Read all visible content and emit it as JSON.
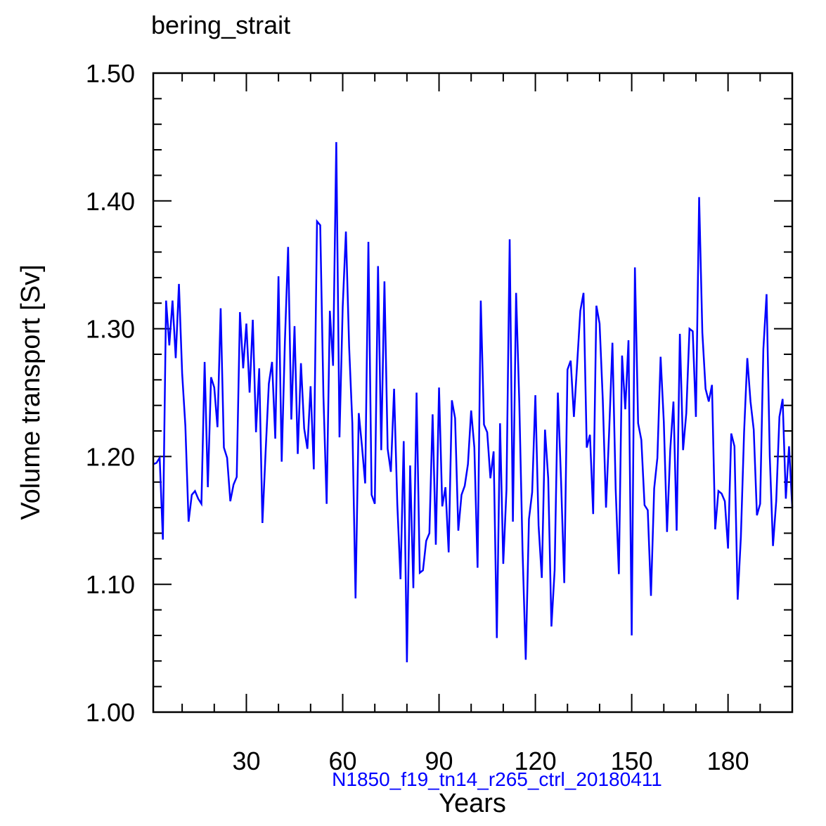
{
  "chart_data": {
    "type": "line",
    "title": "bering_strait",
    "xlabel": "Years",
    "ylabel": "Volume transport [Sv]",
    "subtitle": "N1850_f19_tn14_r265_ctrl_20180411",
    "xlim": [
      1,
      200
    ],
    "ylim": [
      1.0,
      1.5
    ],
    "xticks": [
      30,
      60,
      90,
      120,
      150,
      180
    ],
    "yticks": [
      "1.00",
      "1.10",
      "1.20",
      "1.30",
      "1.40",
      "1.50"
    ],
    "line_color": "#0000ff",
    "subtitle_color": "#0000ff",
    "grid": false,
    "series": [
      {
        "x": [
          1,
          2,
          3,
          4,
          5,
          6,
          7,
          8,
          9,
          10,
          11,
          12,
          13,
          14,
          15,
          16,
          17,
          18,
          19,
          20,
          21,
          22,
          23,
          24,
          25,
          26,
          27,
          28,
          29,
          30,
          31,
          32,
          33,
          34,
          35,
          36,
          37,
          38,
          39,
          40,
          41,
          42,
          43,
          44,
          45,
          46,
          47,
          48,
          49,
          50,
          51,
          52,
          53,
          54,
          55,
          56,
          57,
          58,
          59,
          60,
          61,
          62,
          63,
          64,
          65,
          66,
          67,
          68,
          69,
          70,
          71,
          72,
          73,
          74,
          75,
          76,
          77,
          78,
          79,
          80,
          81,
          82,
          83,
          84,
          85,
          86,
          87,
          88,
          89,
          90,
          91,
          92,
          93,
          94,
          95,
          96,
          97,
          98,
          99,
          100,
          101,
          102,
          103,
          104,
          105,
          106,
          107,
          108,
          109,
          110,
          111,
          112,
          113,
          114,
          115,
          116,
          117,
          118,
          119,
          120,
          121,
          122,
          123,
          124,
          125,
          126,
          127,
          128,
          129,
          130,
          131,
          132,
          133,
          134,
          135,
          136,
          137,
          138,
          139,
          140,
          141,
          142,
          143,
          144,
          145,
          146,
          147,
          148,
          149,
          150,
          151,
          152,
          153,
          154,
          155,
          156,
          157,
          158,
          159,
          160,
          161,
          162,
          163,
          164,
          165,
          166,
          167,
          168,
          169,
          170,
          171,
          172,
          173,
          174,
          175,
          176,
          177,
          178,
          179,
          180,
          181,
          182,
          183,
          184,
          185,
          186,
          187,
          188,
          189,
          190,
          191,
          192,
          193,
          194,
          195,
          196,
          197,
          198,
          199,
          200
        ],
        "values": [
          1.194,
          1.195,
          1.199,
          1.135,
          1.322,
          1.287,
          1.322,
          1.277,
          1.335,
          1.265,
          1.224,
          1.149,
          1.17,
          1.173,
          1.167,
          1.163,
          1.274,
          1.176,
          1.262,
          1.254,
          1.223,
          1.316,
          1.207,
          1.199,
          1.165,
          1.178,
          1.184,
          1.313,
          1.269,
          1.304,
          1.25,
          1.307,
          1.219,
          1.269,
          1.148,
          1.204,
          1.257,
          1.274,
          1.214,
          1.341,
          1.196,
          1.29,
          1.364,
          1.229,
          1.302,
          1.202,
          1.273,
          1.222,
          1.206,
          1.255,
          1.19,
          1.384,
          1.381,
          1.247,
          1.163,
          1.314,
          1.271,
          1.446,
          1.215,
          1.317,
          1.376,
          1.286,
          1.226,
          1.089,
          1.234,
          1.208,
          1.179,
          1.368,
          1.17,
          1.163,
          1.349,
          1.205,
          1.337,
          1.206,
          1.188,
          1.253,
          1.163,
          1.104,
          1.212,
          1.039,
          1.193,
          1.097,
          1.25,
          1.109,
          1.111,
          1.134,
          1.14,
          1.233,
          1.131,
          1.254,
          1.161,
          1.176,
          1.125,
          1.244,
          1.23,
          1.142,
          1.17,
          1.177,
          1.194,
          1.236,
          1.207,
          1.113,
          1.322,
          1.225,
          1.219,
          1.183,
          1.204,
          1.058,
          1.226,
          1.116,
          1.174,
          1.37,
          1.149,
          1.328,
          1.242,
          1.127,
          1.041,
          1.151,
          1.172,
          1.248,
          1.146,
          1.105,
          1.221,
          1.183,
          1.067,
          1.111,
          1.25,
          1.181,
          1.101,
          1.268,
          1.275,
          1.231,
          1.272,
          1.314,
          1.328,
          1.207,
          1.217,
          1.155,
          1.318,
          1.304,
          1.244,
          1.16,
          1.221,
          1.289,
          1.175,
          1.108,
          1.279,
          1.237,
          1.291,
          1.06,
          1.348,
          1.226,
          1.213,
          1.162,
          1.158,
          1.091,
          1.175,
          1.199,
          1.278,
          1.227,
          1.141,
          1.205,
          1.243,
          1.142,
          1.296,
          1.205,
          1.234,
          1.3,
          1.298,
          1.231,
          1.403,
          1.297,
          1.253,
          1.243,
          1.256,
          1.143,
          1.173,
          1.171,
          1.165,
          1.128,
          1.218,
          1.208,
          1.088,
          1.137,
          1.219,
          1.277,
          1.243,
          1.221,
          1.154,
          1.163,
          1.284,
          1.327,
          1.2,
          1.13,
          1.165,
          1.231,
          1.245,
          1.167,
          1.208,
          1.16
        ]
      }
    ]
  }
}
